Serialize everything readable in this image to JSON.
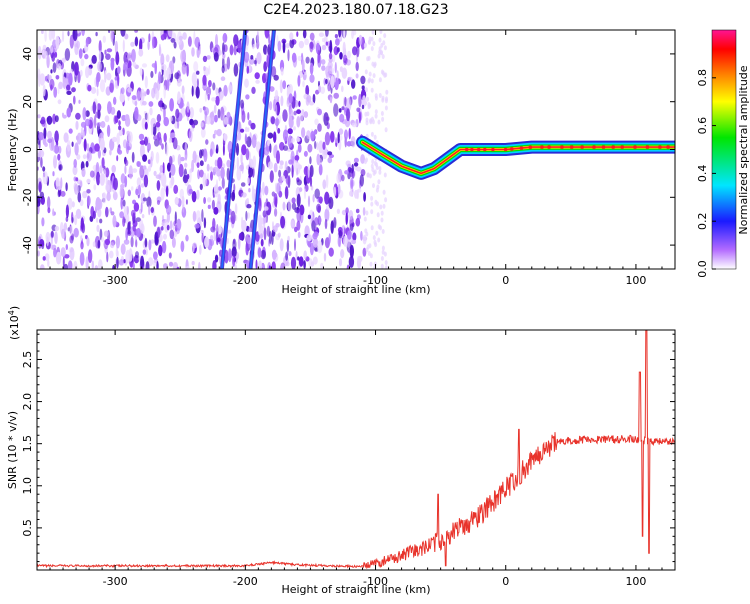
{
  "title": "C2E4.2023.180.07.18.G23",
  "chart_data": [
    {
      "type": "heatmap",
      "name": "spectrogram",
      "xlabel": "Height of straight line (km)",
      "ylabel": "Frequency (Hz)",
      "xlim": [
        -360,
        130
      ],
      "ylim": [
        -50,
        50
      ],
      "xticks": [
        -300,
        -200,
        -100,
        0,
        100
      ],
      "xtick_labels": [
        "-300",
        "-200",
        "-100",
        "0",
        "100"
      ],
      "yticks": [
        -40,
        -20,
        0,
        20,
        40
      ],
      "ytick_labels": [
        "-40",
        "-20",
        "0",
        "20",
        "40"
      ],
      "noise_region_km": [
        -360,
        -108
      ],
      "signal_track": [
        {
          "x": -110,
          "y": 3
        },
        {
          "x": -95,
          "y": -2
        },
        {
          "x": -80,
          "y": -7
        },
        {
          "x": -65,
          "y": -10
        },
        {
          "x": -55,
          "y": -8
        },
        {
          "x": -45,
          "y": -4
        },
        {
          "x": -35,
          "y": 0
        },
        {
          "x": -20,
          "y": 0
        },
        {
          "x": 0,
          "y": 0
        },
        {
          "x": 20,
          "y": 1
        },
        {
          "x": 60,
          "y": 1
        },
        {
          "x": 100,
          "y": 1
        },
        {
          "x": 130,
          "y": 1
        }
      ],
      "diagonal_streaks": [
        {
          "x0": -218,
          "y0": -50,
          "x1": -200,
          "y1": 50
        },
        {
          "x0": -196,
          "y0": -50,
          "x1": -178,
          "y1": 50
        }
      ],
      "colorbar": {
        "label": "Normalized spectral amplitude",
        "range": [
          0,
          1
        ],
        "ticks": [
          0.0,
          0.2,
          0.4,
          0.6,
          0.8
        ],
        "tick_labels": [
          "0.0",
          "0.2",
          "0.4",
          "0.6",
          "0.8"
        ]
      }
    },
    {
      "type": "line",
      "name": "snr",
      "xlabel": "Height of straight line (km)",
      "ylabel": "SNR (10 * v/v)",
      "multiplier": "(x10",
      "multiplier_exp": "4",
      "multiplier_close": ")",
      "xlim": [
        -360,
        130
      ],
      "ylim": [
        0,
        2.85
      ],
      "xticks": [
        -300,
        -200,
        -100,
        0,
        100
      ],
      "xtick_labels": [
        "-300",
        "-200",
        "-100",
        "0",
        "100"
      ],
      "yticks": [
        0.5,
        1.0,
        1.5,
        2.0,
        2.5
      ],
      "ytick_labels": [
        "0.5",
        "1.0",
        "1.5",
        "2.0",
        "2.5"
      ],
      "color": "#e8332b",
      "envelope": [
        {
          "x": -360,
          "y": 0.05
        },
        {
          "x": -200,
          "y": 0.05
        },
        {
          "x": -180,
          "y": 0.09
        },
        {
          "x": -160,
          "y": 0.06
        },
        {
          "x": -110,
          "y": 0.04
        },
        {
          "x": -90,
          "y": 0.12
        },
        {
          "x": -70,
          "y": 0.22
        },
        {
          "x": -50,
          "y": 0.35
        },
        {
          "x": -40,
          "y": 0.45
        },
        {
          "x": -20,
          "y": 0.65
        },
        {
          "x": 0,
          "y": 0.95
        },
        {
          "x": 20,
          "y": 1.3
        },
        {
          "x": 30,
          "y": 1.45
        },
        {
          "x": 40,
          "y": 1.52
        },
        {
          "x": 60,
          "y": 1.55
        },
        {
          "x": 90,
          "y": 1.55
        },
        {
          "x": 100,
          "y": 1.55
        },
        {
          "x": 130,
          "y": 1.52
        }
      ],
      "spikes": [
        {
          "x": -52,
          "y": 0.9
        },
        {
          "x": -46,
          "y": 0.05
        },
        {
          "x": 10,
          "y": 1.67
        },
        {
          "x": 103,
          "y": 2.35
        },
        {
          "x": 105,
          "y": 0.4
        },
        {
          "x": 108,
          "y": 2.85
        },
        {
          "x": 110,
          "y": 0.2
        }
      ]
    }
  ]
}
